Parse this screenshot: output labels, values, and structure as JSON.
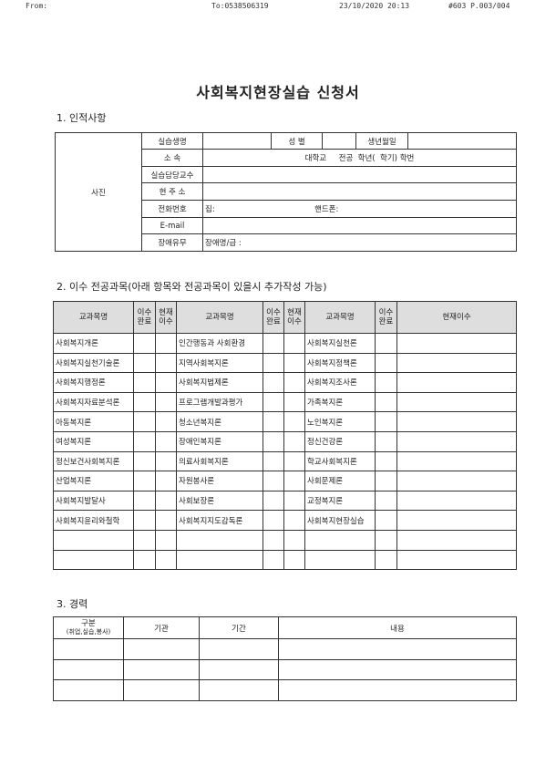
{
  "fax_header": {
    "from": "From:",
    "to": "To:0538506319",
    "datetime": "23/10/2020 20:13",
    "page": "#603 P.003/004"
  },
  "title": "사회복지현장실습 신청서",
  "personal": {
    "heading": "1. 인적사항",
    "photo": "사진",
    "name_label": "실습생명",
    "gender_label": "성 별",
    "birth_label": "생년월일",
    "affiliation_label": "소 속",
    "affiliation_text": "대학교     전공  학년(  학기) 학번",
    "professor_label": "실습담당교수",
    "address_label": "현 주 소",
    "phone_label": "전화번호",
    "phone_home": "집:",
    "phone_mobile": "핸드폰:",
    "email_label": "E-mail",
    "disability_label": "장애유무",
    "disability_text": "장애명/급 :"
  },
  "courses": {
    "heading": "2. 이수 전공과목(아래 항목와 전공과목이 있을시 추가작성 가능)",
    "headers": [
      "교과목명",
      "이수\n완료",
      "현재\n이수",
      "교과목명",
      "이수\n완료",
      "현재\n이수",
      "교과목명",
      "이수\n완료",
      "현재이수"
    ],
    "rows": [
      [
        "사회복지개론",
        "인간행동과 사회환경",
        "사회복지실천론"
      ],
      [
        "사회복지실천기술론",
        "지역사회복지론",
        "사회복지정책론"
      ],
      [
        "사회복지행정론",
        "사회복지법제론",
        "사회복지조사론"
      ],
      [
        "사회복지자료분석론",
        "프로그램개발과평가",
        "가족복지론"
      ],
      [
        "아동복지론",
        "청소년복지론",
        "노인복지론"
      ],
      [
        "여성복지론",
        "장애인복지론",
        "정신건강론"
      ],
      [
        "정신보건사회복지론",
        "의료사회복지론",
        "학교사회복지론"
      ],
      [
        "산업복지론",
        "자원봉사론",
        "사회문제론"
      ],
      [
        "사회복지발달사",
        "사회보장론",
        "교정복지론"
      ],
      [
        "사회복지윤리와철학",
        "사회복지지도감독론",
        "사회복지현장실습"
      ]
    ]
  },
  "career": {
    "heading": "3. 경력",
    "division": "구분",
    "division_note": "(취업,실습,봉사)",
    "headers": [
      "기관",
      "기간",
      "내용"
    ]
  }
}
